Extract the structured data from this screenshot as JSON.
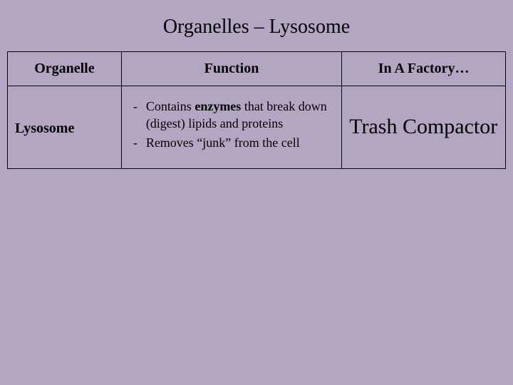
{
  "title": "Organelles – Lysosome",
  "columns": {
    "0": "Organelle",
    "1": "Function",
    "2": "In A Factory…"
  },
  "row": {
    "organelle": "Lysosome",
    "function_items": {
      "0": {
        "prefix": "Contains ",
        "bold": "enzymes",
        "suffix": " that break down (digest) lipids and proteins"
      },
      "1": {
        "prefix": "Removes “junk” from the cell",
        "bold": "",
        "suffix": ""
      }
    },
    "factory": "Trash Compactor"
  },
  "styling": {
    "background_color": "#b3a6c3",
    "border_color": "#000000",
    "title_fontsize": 28,
    "header_fontsize": 20,
    "body_fontsize": 18,
    "factory_fontsize": 30,
    "font_family": "Georgia"
  }
}
